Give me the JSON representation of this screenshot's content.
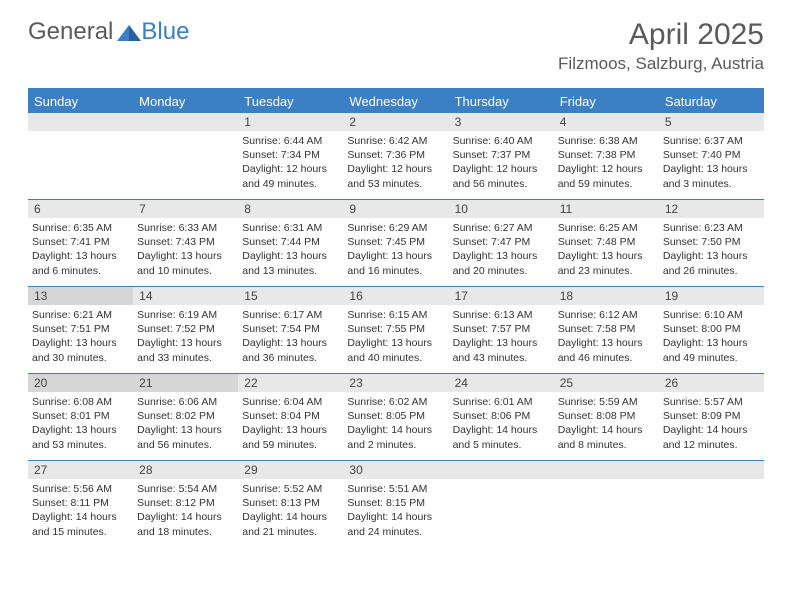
{
  "logo": {
    "part1": "General",
    "part2": "Blue"
  },
  "title": "April 2025",
  "location": "Filzmoos, Salzburg, Austria",
  "colors": {
    "accent": "#3b7fc4",
    "header_bg": "#e8e8e8",
    "header_bg_shaded": "#d6d6d6",
    "text": "#333333",
    "muted": "#5a5a5a",
    "white": "#ffffff"
  },
  "days_of_week": [
    "Sunday",
    "Monday",
    "Tuesday",
    "Wednesday",
    "Thursday",
    "Friday",
    "Saturday"
  ],
  "weeks": [
    [
      null,
      null,
      {
        "n": "1",
        "sr": "6:44 AM",
        "ss": "7:34 PM",
        "dl": "12 hours and 49 minutes."
      },
      {
        "n": "2",
        "sr": "6:42 AM",
        "ss": "7:36 PM",
        "dl": "12 hours and 53 minutes."
      },
      {
        "n": "3",
        "sr": "6:40 AM",
        "ss": "7:37 PM",
        "dl": "12 hours and 56 minutes."
      },
      {
        "n": "4",
        "sr": "6:38 AM",
        "ss": "7:38 PM",
        "dl": "12 hours and 59 minutes."
      },
      {
        "n": "5",
        "sr": "6:37 AM",
        "ss": "7:40 PM",
        "dl": "13 hours and 3 minutes."
      }
    ],
    [
      {
        "n": "6",
        "sr": "6:35 AM",
        "ss": "7:41 PM",
        "dl": "13 hours and 6 minutes."
      },
      {
        "n": "7",
        "sr": "6:33 AM",
        "ss": "7:43 PM",
        "dl": "13 hours and 10 minutes."
      },
      {
        "n": "8",
        "sr": "6:31 AM",
        "ss": "7:44 PM",
        "dl": "13 hours and 13 minutes."
      },
      {
        "n": "9",
        "sr": "6:29 AM",
        "ss": "7:45 PM",
        "dl": "13 hours and 16 minutes."
      },
      {
        "n": "10",
        "sr": "6:27 AM",
        "ss": "7:47 PM",
        "dl": "13 hours and 20 minutes."
      },
      {
        "n": "11",
        "sr": "6:25 AM",
        "ss": "7:48 PM",
        "dl": "13 hours and 23 minutes."
      },
      {
        "n": "12",
        "sr": "6:23 AM",
        "ss": "7:50 PM",
        "dl": "13 hours and 26 minutes."
      }
    ],
    [
      {
        "n": "13",
        "sr": "6:21 AM",
        "ss": "7:51 PM",
        "dl": "13 hours and 30 minutes.",
        "shaded": true
      },
      {
        "n": "14",
        "sr": "6:19 AM",
        "ss": "7:52 PM",
        "dl": "13 hours and 33 minutes."
      },
      {
        "n": "15",
        "sr": "6:17 AM",
        "ss": "7:54 PM",
        "dl": "13 hours and 36 minutes."
      },
      {
        "n": "16",
        "sr": "6:15 AM",
        "ss": "7:55 PM",
        "dl": "13 hours and 40 minutes."
      },
      {
        "n": "17",
        "sr": "6:13 AM",
        "ss": "7:57 PM",
        "dl": "13 hours and 43 minutes."
      },
      {
        "n": "18",
        "sr": "6:12 AM",
        "ss": "7:58 PM",
        "dl": "13 hours and 46 minutes."
      },
      {
        "n": "19",
        "sr": "6:10 AM",
        "ss": "8:00 PM",
        "dl": "13 hours and 49 minutes."
      }
    ],
    [
      {
        "n": "20",
        "sr": "6:08 AM",
        "ss": "8:01 PM",
        "dl": "13 hours and 53 minutes.",
        "shaded": true
      },
      {
        "n": "21",
        "sr": "6:06 AM",
        "ss": "8:02 PM",
        "dl": "13 hours and 56 minutes.",
        "shaded": true
      },
      {
        "n": "22",
        "sr": "6:04 AM",
        "ss": "8:04 PM",
        "dl": "13 hours and 59 minutes."
      },
      {
        "n": "23",
        "sr": "6:02 AM",
        "ss": "8:05 PM",
        "dl": "14 hours and 2 minutes."
      },
      {
        "n": "24",
        "sr": "6:01 AM",
        "ss": "8:06 PM",
        "dl": "14 hours and 5 minutes."
      },
      {
        "n": "25",
        "sr": "5:59 AM",
        "ss": "8:08 PM",
        "dl": "14 hours and 8 minutes."
      },
      {
        "n": "26",
        "sr": "5:57 AM",
        "ss": "8:09 PM",
        "dl": "14 hours and 12 minutes."
      }
    ],
    [
      {
        "n": "27",
        "sr": "5:56 AM",
        "ss": "8:11 PM",
        "dl": "14 hours and 15 minutes."
      },
      {
        "n": "28",
        "sr": "5:54 AM",
        "ss": "8:12 PM",
        "dl": "14 hours and 18 minutes."
      },
      {
        "n": "29",
        "sr": "5:52 AM",
        "ss": "8:13 PM",
        "dl": "14 hours and 21 minutes."
      },
      {
        "n": "30",
        "sr": "5:51 AM",
        "ss": "8:15 PM",
        "dl": "14 hours and 24 minutes."
      },
      null,
      null,
      null
    ]
  ],
  "labels": {
    "sunrise": "Sunrise:",
    "sunset": "Sunset:",
    "daylight": "Daylight:"
  }
}
